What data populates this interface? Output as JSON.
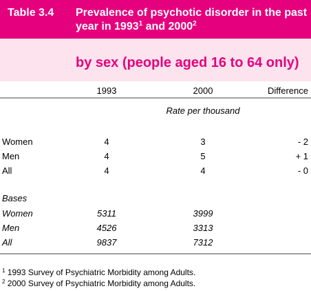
{
  "header": {
    "table_number": "Table 3.4",
    "title_line1": "Prevalence of psychotic disorder in the past",
    "title_line2a": "year in 1993",
    "title_sup1": "1",
    "title_line2b": " and 2000",
    "title_sup2": "2",
    "subtitle": "by sex (people aged 16 to 64 only)"
  },
  "table": {
    "columns": [
      "1993",
      "2000",
      "Difference"
    ],
    "unit": "Rate per thousand",
    "rows": [
      [
        "Women",
        4,
        3,
        "- 2"
      ],
      [
        "Men",
        4,
        5,
        "+ 1"
      ],
      [
        "All",
        4,
        4,
        "- 0"
      ]
    ],
    "bases_label": "Bases",
    "bases": [
      [
        "Women",
        5311,
        3999
      ],
      [
        "Men",
        4526,
        3313
      ],
      [
        "All",
        9837,
        7312
      ]
    ]
  },
  "footnotes": [
    {
      "marker": "1",
      "text": " 1993 Survey of Psychiatric Morbidity among Adults."
    },
    {
      "marker": "2",
      "text": " 2000 Survey of Psychiatric Morbidity among Adults."
    }
  ]
}
